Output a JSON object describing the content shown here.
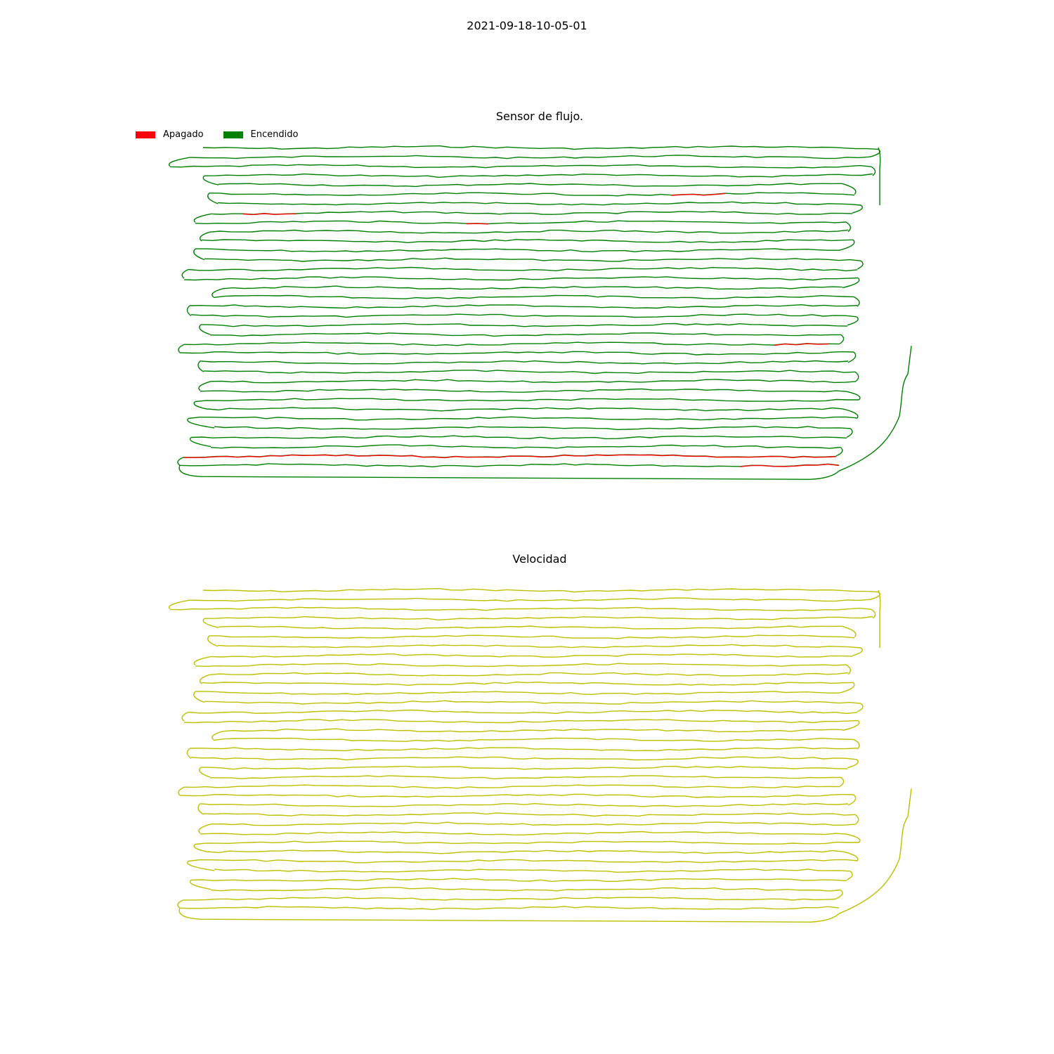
{
  "figure": {
    "suptitle": "2021-09-18-10-05-01"
  },
  "colors": {
    "apagado": "#ff0000",
    "encendido": "#008000",
    "velocidad": "#bfbf00"
  },
  "chart_data": [
    {
      "type": "line",
      "title": "Sensor de flujo.",
      "legend": {
        "placement": "top-left",
        "entries": [
          "Apagado",
          "Encendido"
        ]
      },
      "grid": false,
      "axes_visible": false,
      "rows": 35,
      "off_segments": [
        {
          "row": 5,
          "from": 0.72,
          "to": 0.8
        },
        {
          "row": 7,
          "from": 0.05,
          "to": 0.14
        },
        {
          "row": 8,
          "from": 0.42,
          "to": 0.45
        },
        {
          "row": 21,
          "from": 0.9,
          "to": 0.98
        },
        {
          "row": 33,
          "from": 0.0,
          "to": 1.0
        },
        {
          "row": 34,
          "from": 0.85,
          "to": 1.0
        }
      ]
    },
    {
      "type": "line",
      "title": "Velocidad",
      "grid": false,
      "axes_visible": false,
      "rows": 35
    }
  ]
}
